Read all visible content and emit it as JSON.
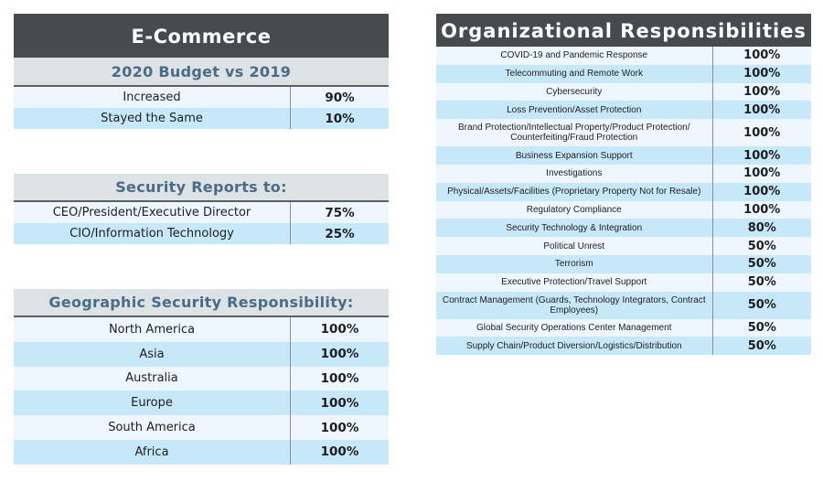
{
  "ecommerce": {
    "title": "E-Commerce",
    "budget": {
      "heading": "2020 Budget vs 2019",
      "rows": [
        {
          "label": "Increased",
          "value": "90%"
        },
        {
          "label": "Stayed the Same",
          "value": "10%"
        }
      ]
    },
    "reports_to": {
      "heading": "Security Reports to:",
      "rows": [
        {
          "label": "CEO/President/Executive Director",
          "value": "75%"
        },
        {
          "label": "CIO/Information Technology",
          "value": "25%"
        }
      ]
    },
    "geographic": {
      "heading": "Geographic Security Responsibility:",
      "rows": [
        {
          "label": "North America",
          "value": "100%"
        },
        {
          "label": "Asia",
          "value": "100%"
        },
        {
          "label": "Australia",
          "value": "100%"
        },
        {
          "label": "Europe",
          "value": "100%"
        },
        {
          "label": "South America",
          "value": "100%"
        },
        {
          "label": "Africa",
          "value": "100%"
        }
      ]
    }
  },
  "organizational": {
    "title": "Organizational Responsibilities",
    "rows": [
      {
        "label": "COVID-19 and Pandemic Response",
        "value": "100%"
      },
      {
        "label": "Telecommuting and Remote Work",
        "value": "100%"
      },
      {
        "label": "Cybersecurity",
        "value": "100%"
      },
      {
        "label": "Loss Prevention/Asset Protection",
        "value": "100%"
      },
      {
        "label": "Brand Protection/Intellectual Property/Product Protection/ Counterfeiting/Fraud Protection",
        "value": "100%"
      },
      {
        "label": "Business Expansion Support",
        "value": "100%"
      },
      {
        "label": "Investigations",
        "value": "100%"
      },
      {
        "label": "Physical/Assets/Facilities (Proprietary Property Not for Resale)",
        "value": "100%"
      },
      {
        "label": "Regulatory Compliance",
        "value": "100%"
      },
      {
        "label": "Security Technology & Integration",
        "value": "80%"
      },
      {
        "label": "Political Unrest",
        "value": "50%"
      },
      {
        "label": "Terrorism",
        "value": "50%"
      },
      {
        "label": "Executive Protection/Travel Support",
        "value": "50%"
      },
      {
        "label": "Contract Management (Guards, Technology Integrators, Contract Employees)",
        "value": "50%"
      },
      {
        "label": "Global Security Operations Center Management",
        "value": "50%"
      },
      {
        "label": "Supply Chain/Product Diversion/Logistics/Distribution",
        "value": "50%"
      }
    ]
  }
}
